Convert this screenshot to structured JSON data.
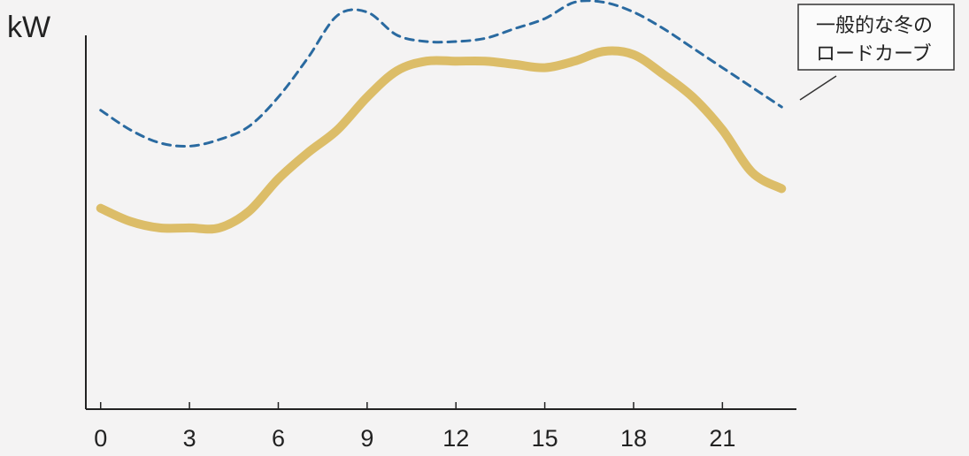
{
  "chart_data": {
    "type": "line",
    "ylabel": "kW",
    "xlabel": "",
    "xlim": [
      -0.5,
      23.5
    ],
    "ylim": [
      0,
      100
    ],
    "x_ticks": [
      0,
      3,
      6,
      9,
      12,
      15,
      18,
      21
    ],
    "x_tick_labels": [
      "0",
      "3",
      "6",
      "9",
      "12",
      "15",
      "18",
      "21"
    ],
    "annotations": [
      {
        "text_line1": "一般的な冬の",
        "text_line2": "ロードカーブ",
        "target_series": "dashed"
      }
    ],
    "series": [
      {
        "style": "dashed",
        "color": "#2a6aa0",
        "x": [
          0,
          1,
          2,
          3,
          4,
          5,
          6,
          7,
          8,
          9,
          10,
          11,
          12,
          13,
          14,
          15,
          16,
          17,
          18,
          19,
          20,
          21,
          22,
          23
        ],
        "y": [
          69,
          63,
          59,
          58,
          60,
          64,
          73,
          85,
          98,
          99,
          92,
          90,
          90,
          91,
          94,
          97,
          102,
          102,
          99,
          94,
          88,
          82,
          76,
          70
        ]
      },
      {
        "style": "solid-thick",
        "color": "#d9b85c",
        "x": [
          0,
          1,
          2,
          3,
          4,
          5,
          6,
          7,
          8,
          9,
          10,
          11,
          12,
          13,
          14,
          15,
          16,
          17,
          18,
          19,
          20,
          21,
          22,
          23
        ],
        "y": [
          39,
          35,
          33,
          33,
          33,
          38,
          48,
          56,
          63,
          73,
          81,
          84,
          84,
          84,
          83,
          82,
          84,
          87,
          86,
          80,
          73,
          63,
          50,
          45
        ]
      }
    ]
  }
}
